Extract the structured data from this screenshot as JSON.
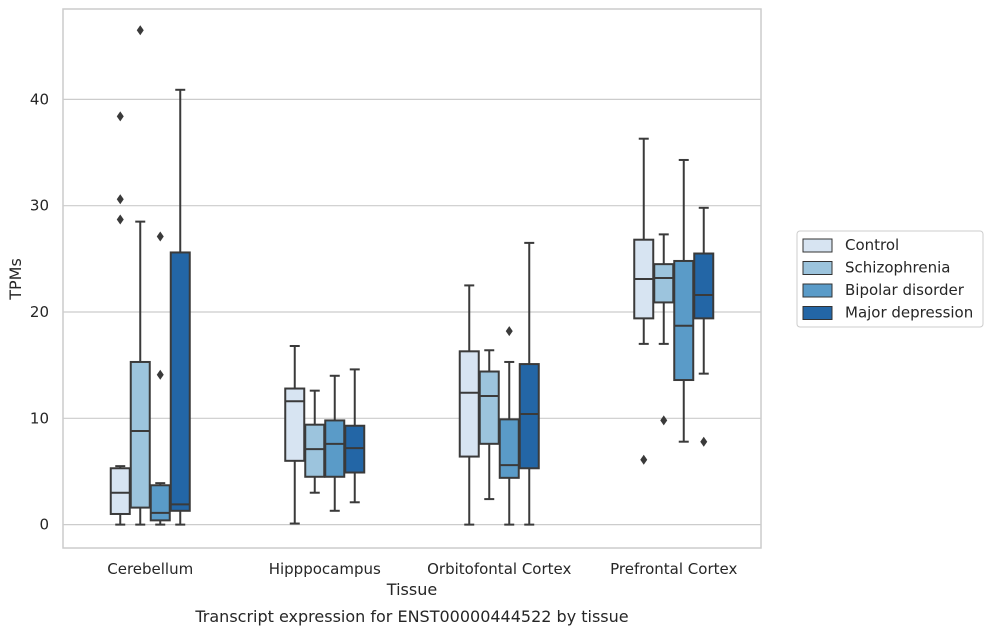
{
  "chart_data": {
    "type": "box",
    "xlabel": "Tissue",
    "ylabel": "TPMs",
    "caption": "Transcript expression for ENST00000444522 by tissue",
    "ylim": [
      -2.2,
      48.5
    ],
    "yticks": [
      0,
      10,
      20,
      30,
      40
    ],
    "grid": "horizontal",
    "legend_position": "right, outside",
    "categories": [
      "Cerebellum",
      "Hipppocampus",
      "Orbitofontal Cortex",
      "Prefrontal Cortex"
    ],
    "series": [
      {
        "name": "Control",
        "color": "#d7e4f2",
        "boxes": [
          {
            "whisker_low": 0,
            "q1": 1.0,
            "median": 3.0,
            "q3": 5.3,
            "whisker_high": 5.5,
            "outliers": [
              28.7,
              30.6,
              38.4
            ]
          },
          {
            "whisker_low": 0.1,
            "q1": 6.0,
            "median": 11.6,
            "q3": 12.8,
            "whisker_high": 16.8,
            "outliers": []
          },
          {
            "whisker_low": 0,
            "q1": 6.4,
            "median": 12.4,
            "q3": 16.3,
            "whisker_high": 22.5,
            "outliers": []
          },
          {
            "whisker_low": 17.0,
            "q1": 19.4,
            "median": 23.1,
            "q3": 26.8,
            "whisker_high": 36.3,
            "outliers": [
              6.1
            ]
          }
        ]
      },
      {
        "name": "Schizophrenia",
        "color": "#9cc4dd",
        "boxes": [
          {
            "whisker_low": 0,
            "q1": 1.6,
            "median": 8.8,
            "q3": 15.3,
            "whisker_high": 28.5,
            "outliers": [
              46.5
            ]
          },
          {
            "whisker_low": 3.0,
            "q1": 4.5,
            "median": 7.1,
            "q3": 9.4,
            "whisker_high": 12.6,
            "outliers": []
          },
          {
            "whisker_low": 2.4,
            "q1": 7.6,
            "median": 12.1,
            "q3": 14.4,
            "whisker_high": 16.4,
            "outliers": []
          },
          {
            "whisker_low": 17.0,
            "q1": 20.9,
            "median": 23.2,
            "q3": 24.5,
            "whisker_high": 27.3,
            "outliers": [
              9.8
            ]
          }
        ]
      },
      {
        "name": "Bipolar disorder",
        "color": "#5a9bc8",
        "boxes": [
          {
            "whisker_low": 0,
            "q1": 0.4,
            "median": 1.1,
            "q3": 3.7,
            "whisker_high": 3.9,
            "outliers": [
              14.1,
              27.1
            ]
          },
          {
            "whisker_low": 1.3,
            "q1": 4.5,
            "median": 7.6,
            "q3": 9.8,
            "whisker_high": 14.0,
            "outliers": []
          },
          {
            "whisker_low": 0,
            "q1": 4.4,
            "median": 5.6,
            "q3": 9.9,
            "whisker_high": 15.3,
            "outliers": [
              18.2
            ]
          },
          {
            "whisker_low": 7.8,
            "q1": 13.6,
            "median": 18.7,
            "q3": 24.8,
            "whisker_high": 34.3,
            "outliers": []
          }
        ]
      },
      {
        "name": "Major depression",
        "color": "#2366a6",
        "boxes": [
          {
            "whisker_low": 0,
            "q1": 1.3,
            "median": 1.9,
            "q3": 25.6,
            "whisker_high": 40.9,
            "outliers": []
          },
          {
            "whisker_low": 2.1,
            "q1": 4.9,
            "median": 7.2,
            "q3": 9.3,
            "whisker_high": 14.6,
            "outliers": []
          },
          {
            "whisker_low": 0,
            "q1": 5.3,
            "median": 10.4,
            "q3": 15.1,
            "whisker_high": 26.5,
            "outliers": []
          },
          {
            "whisker_low": 14.2,
            "q1": 19.4,
            "median": 21.6,
            "q3": 25.5,
            "whisker_high": 29.8,
            "outliers": [
              7.8
            ]
          }
        ]
      }
    ]
  }
}
